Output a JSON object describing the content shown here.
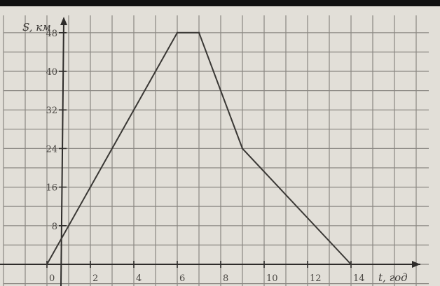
{
  "chart_data": {
    "type": "line",
    "xlabel": "t, год",
    "ylabel": "S, км",
    "x": [
      0,
      6,
      7,
      9,
      14
    ],
    "y": [
      0,
      48,
      48,
      24,
      0
    ],
    "x_ticks": [
      "0",
      "2",
      "4",
      "6",
      "8",
      "10",
      "12",
      "14"
    ],
    "y_ticks": [
      "8",
      "16",
      "24",
      "32",
      "40",
      "48"
    ],
    "xlim": [
      0,
      15
    ],
    "ylim": [
      0,
      50
    ],
    "grid": true,
    "colors": {
      "paper": "#e4e1da",
      "line": "#3a3835",
      "grid": "#8a8782"
    }
  }
}
